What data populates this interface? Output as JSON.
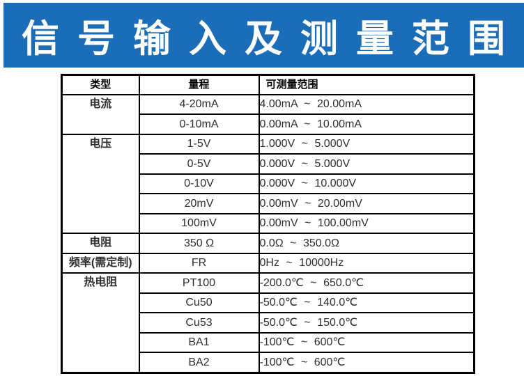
{
  "banner": {
    "title": "信 号 输 入 及 测 量 范 围",
    "bg_color": "#1b6db8",
    "text_color": "#ffffff"
  },
  "table": {
    "border_color": "#000000",
    "headers": [
      "类型",
      "量程",
      "可测量范围"
    ],
    "groups": [
      {
        "type": "电流",
        "rows": [
          {
            "range": "4-20mA",
            "measurable": "4.00mA ~ 20.00mA"
          },
          {
            "range": "0-10mA",
            "measurable": "0.00mA ~ 10.00mA"
          }
        ]
      },
      {
        "type": "电压",
        "rows": [
          {
            "range": "1-5V",
            "measurable": "1.000V ~ 5.000V"
          },
          {
            "range": "0-5V",
            "measurable": "0.000V ~ 5.000V"
          },
          {
            "range": "0-10V",
            "measurable": "0.000V ~ 10.000V"
          },
          {
            "range": "20mV",
            "measurable": "0.00mV ~ 20.00mV"
          },
          {
            "range": "100mV",
            "measurable": "0.00mV ~ 100.00mV"
          }
        ]
      },
      {
        "type": "电阻",
        "rows": [
          {
            "range": "350 Ω",
            "measurable": "0.0Ω ~ 350.0Ω"
          }
        ]
      },
      {
        "type": "频率(需定制)",
        "rows": [
          {
            "range": "FR",
            "measurable": "0Hz ~ 10000Hz"
          }
        ]
      },
      {
        "type": "热电阻",
        "rows": [
          {
            "range": "PT100",
            "measurable": "-200.0℃ ~ 650.0℃"
          },
          {
            "range": "Cu50",
            "measurable": "-50.0℃ ~ 140.0℃"
          },
          {
            "range": "Cu53",
            "measurable": "-50.0℃ ~ 150.0℃"
          },
          {
            "range": "BA1",
            "measurable": "-100℃ ~ 600℃"
          },
          {
            "range": "BA2",
            "measurable": "-100℃ ~ 600℃"
          }
        ]
      }
    ]
  }
}
